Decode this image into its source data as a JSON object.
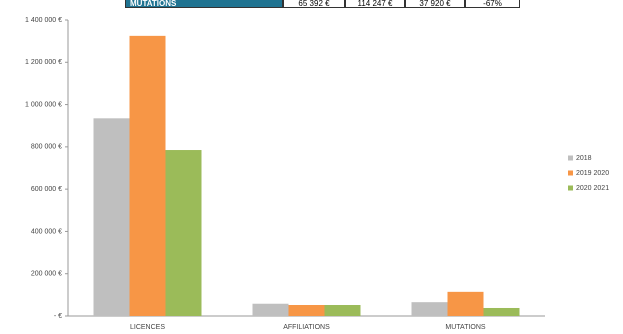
{
  "table": {
    "row": [
      "MUTATIONS",
      "65 392 €",
      "114 247 €",
      "37 920 €",
      "-67%"
    ]
  },
  "chart_data": {
    "type": "bar",
    "categories": [
      "LICENCES",
      "AFFILIATIONS",
      "MUTATIONS"
    ],
    "series": [
      {
        "name": "2018",
        "color": "#bfbfbf",
        "values": [
          935000,
          58000,
          65392
        ]
      },
      {
        "name": "2019 2020",
        "color": "#f79646",
        "values": [
          1325000,
          52000,
          114247
        ]
      },
      {
        "name": "2020 2021",
        "color": "#9bbb59",
        "values": [
          785000,
          52000,
          37920
        ]
      }
    ],
    "ylim": [
      0,
      1400000
    ],
    "yticks": [
      {
        "value": 0,
        "label": "- €"
      },
      {
        "value": 200000,
        "label": "200 000 €"
      },
      {
        "value": 400000,
        "label": "400 000 €"
      },
      {
        "value": 600000,
        "label": "600 000 €"
      },
      {
        "value": 800000,
        "label": "800 000 €"
      },
      {
        "value": 1000000,
        "label": "1 000 000 €"
      },
      {
        "value": 1200000,
        "label": "1 200 000 €"
      },
      {
        "value": 1400000,
        "label": "1 400 000 €"
      }
    ],
    "grid": false,
    "legend": "right"
  }
}
